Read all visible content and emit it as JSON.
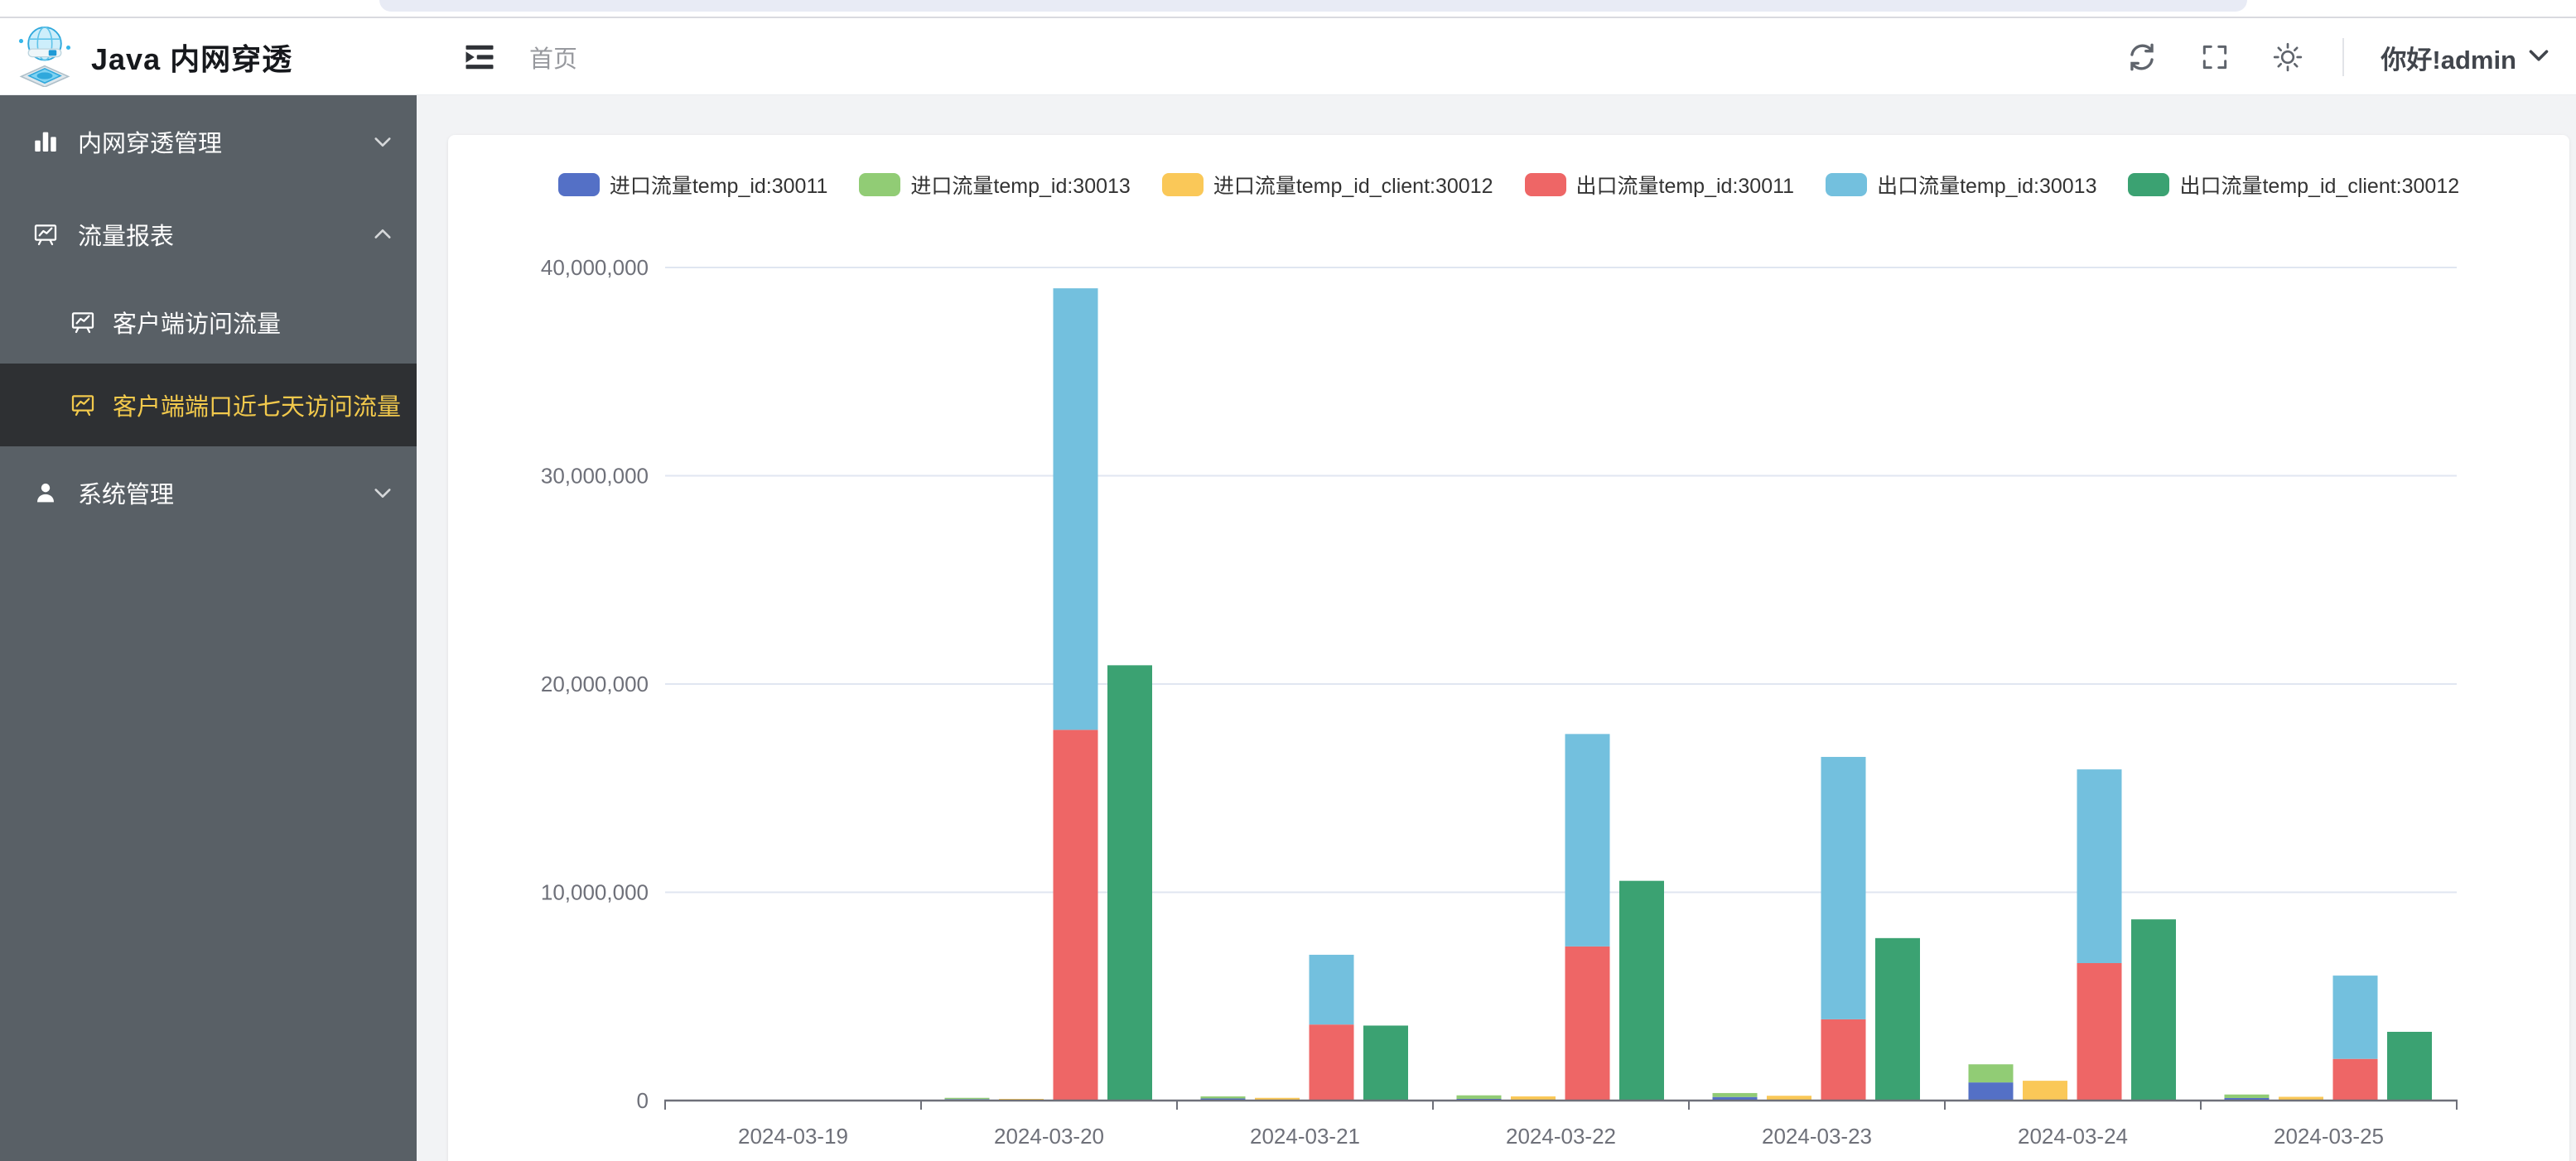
{
  "app": {
    "title": "Java 内网穿透"
  },
  "header": {
    "breadcrumb": "首页",
    "greeting": "你好!admin",
    "icons": [
      "fold-icon",
      "refresh-icon",
      "fullscreen-icon",
      "theme-sun-icon",
      "user-chevron-down-icon"
    ]
  },
  "sidebar": {
    "colors": {
      "bg": "#596066",
      "active_bg": "#2e3033",
      "active_text": "#f2c94c",
      "text": "#ffffff"
    },
    "items": [
      {
        "key": "tunnel-management",
        "label": "内网穿透管理",
        "icon": "bar-chart-icon",
        "state": "collapsed",
        "children": []
      },
      {
        "key": "traffic-report",
        "label": "流量报表",
        "icon": "chart-board-icon",
        "state": "expanded",
        "children": [
          {
            "key": "client-traffic",
            "label": "客户端访问流量",
            "icon": "chart-board-icon",
            "active": false
          },
          {
            "key": "client-port-7day-traffic",
            "label": "客户端端口近七天访问流量",
            "icon": "chart-board-icon",
            "active": true
          }
        ]
      },
      {
        "key": "system-management",
        "label": "系统管理",
        "icon": "user-icon",
        "state": "collapsed",
        "children": []
      }
    ]
  },
  "chart_data": {
    "type": "bar",
    "title": "",
    "xlabel": "",
    "ylabel": "",
    "categories": [
      "2024-03-19",
      "2024-03-20",
      "2024-03-21",
      "2024-03-22",
      "2024-03-23",
      "2024-03-24",
      "2024-03-25"
    ],
    "series": [
      {
        "name": "进口流量temp_id:30011",
        "color": "#5470C6",
        "stack": "in_server",
        "values": [
          0,
          70000,
          100000,
          80000,
          170000,
          870000,
          120000
        ]
      },
      {
        "name": "进口流量temp_id:30013",
        "color": "#91CC75",
        "stack": "in_server",
        "values": [
          0,
          60000,
          100000,
          170000,
          190000,
          870000,
          170000
        ]
      },
      {
        "name": "进口流量temp_id_client:30012",
        "color": "#FAC858",
        "stack": "in_client",
        "values": [
          0,
          80000,
          130000,
          200000,
          230000,
          950000,
          180000
        ]
      },
      {
        "name": "出口流量temp_id:30011",
        "color": "#EE6666",
        "stack": "out_server",
        "values": [
          0,
          17800000,
          3650000,
          7400000,
          3900000,
          6600000,
          2000000
        ]
      },
      {
        "name": "出口流量temp_id:30013",
        "color": "#73C0DE",
        "stack": "out_server",
        "values": [
          0,
          21200000,
          3350000,
          10200000,
          12600000,
          9300000,
          4000000
        ]
      },
      {
        "name": "出口流量temp_id_client:30012",
        "color": "#3BA272",
        "stack": "out_client",
        "values": [
          0,
          20900000,
          3600000,
          10550000,
          7800000,
          8700000,
          3300000
        ]
      }
    ],
    "ylim": [
      0,
      40000000
    ],
    "yticks": [
      0,
      10000000,
      20000000,
      30000000,
      40000000
    ],
    "grid": true,
    "legend_position": "top",
    "colors": {
      "gridline": "#E0E6F1",
      "axis": "#6E7079",
      "axis_label": "#6E7079"
    }
  }
}
